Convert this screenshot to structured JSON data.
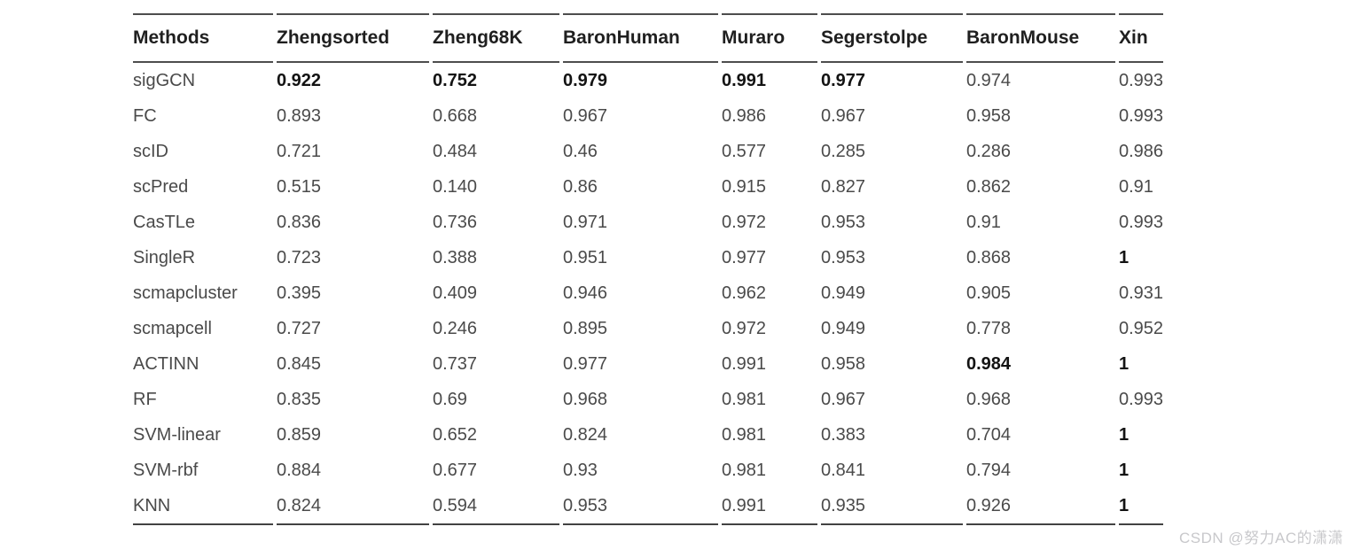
{
  "table": {
    "columns": [
      "Methods",
      "Zhengsorted",
      "Zheng68K",
      "BaronHuman",
      "Muraro",
      "Segerstolpe",
      "BaronMouse",
      "Xin"
    ],
    "rows": [
      {
        "method": "sigGCN",
        "values": [
          "0.922",
          "0.752",
          "0.979",
          "0.991",
          "0.977",
          "0.974",
          "0.993"
        ],
        "bold": [
          true,
          true,
          true,
          true,
          true,
          false,
          false
        ]
      },
      {
        "method": "FC",
        "values": [
          "0.893",
          "0.668",
          "0.967",
          "0.986",
          "0.967",
          "0.958",
          "0.993"
        ],
        "bold": [
          false,
          false,
          false,
          false,
          false,
          false,
          false
        ]
      },
      {
        "method": "scID",
        "values": [
          "0.721",
          "0.484",
          "0.46",
          "0.577",
          "0.285",
          "0.286",
          "0.986"
        ],
        "bold": [
          false,
          false,
          false,
          false,
          false,
          false,
          false
        ]
      },
      {
        "method": "scPred",
        "values": [
          "0.515",
          "0.140",
          "0.86",
          "0.915",
          "0.827",
          "0.862",
          "0.91"
        ],
        "bold": [
          false,
          false,
          false,
          false,
          false,
          false,
          false
        ]
      },
      {
        "method": "CasTLe",
        "values": [
          "0.836",
          "0.736",
          "0.971",
          "0.972",
          "0.953",
          "0.91",
          "0.993"
        ],
        "bold": [
          false,
          false,
          false,
          false,
          false,
          false,
          false
        ]
      },
      {
        "method": "SingleR",
        "values": [
          "0.723",
          "0.388",
          "0.951",
          "0.977",
          "0.953",
          "0.868",
          "1"
        ],
        "bold": [
          false,
          false,
          false,
          false,
          false,
          false,
          true
        ]
      },
      {
        "method": "scmapcluster",
        "values": [
          "0.395",
          "0.409",
          "0.946",
          "0.962",
          "0.949",
          "0.905",
          "0.931"
        ],
        "bold": [
          false,
          false,
          false,
          false,
          false,
          false,
          false
        ]
      },
      {
        "method": "scmapcell",
        "values": [
          "0.727",
          "0.246",
          "0.895",
          "0.972",
          "0.949",
          "0.778",
          "0.952"
        ],
        "bold": [
          false,
          false,
          false,
          false,
          false,
          false,
          false
        ]
      },
      {
        "method": "ACTINN",
        "values": [
          "0.845",
          "0.737",
          "0.977",
          "0.991",
          "0.958",
          "0.984",
          "1"
        ],
        "bold": [
          false,
          false,
          false,
          false,
          false,
          true,
          true
        ]
      },
      {
        "method": "RF",
        "values": [
          "0.835",
          "0.69",
          "0.968",
          "0.981",
          "0.967",
          "0.968",
          "0.993"
        ],
        "bold": [
          false,
          false,
          false,
          false,
          false,
          false,
          false
        ]
      },
      {
        "method": "SVM-linear",
        "values": [
          "0.859",
          "0.652",
          "0.824",
          "0.981",
          "0.383",
          "0.704",
          "1"
        ],
        "bold": [
          false,
          false,
          false,
          false,
          false,
          false,
          true
        ]
      },
      {
        "method": "SVM-rbf",
        "values": [
          "0.884",
          "0.677",
          "0.93",
          "0.981",
          "0.841",
          "0.794",
          "1"
        ],
        "bold": [
          false,
          false,
          false,
          false,
          false,
          false,
          true
        ]
      },
      {
        "method": "KNN",
        "values": [
          "0.824",
          "0.594",
          "0.953",
          "0.991",
          "0.935",
          "0.926",
          "1"
        ],
        "bold": [
          false,
          false,
          false,
          false,
          false,
          false,
          true
        ]
      }
    ]
  },
  "watermark": "CSDN @努力AC的潇潇",
  "colors": {
    "rule": "#4d4d4d",
    "header_text": "#1f1f1f",
    "body_text": "#4a4a4a",
    "bold_text": "#131313",
    "watermark_text": "#c8c8cb",
    "background": "#ffffff"
  }
}
